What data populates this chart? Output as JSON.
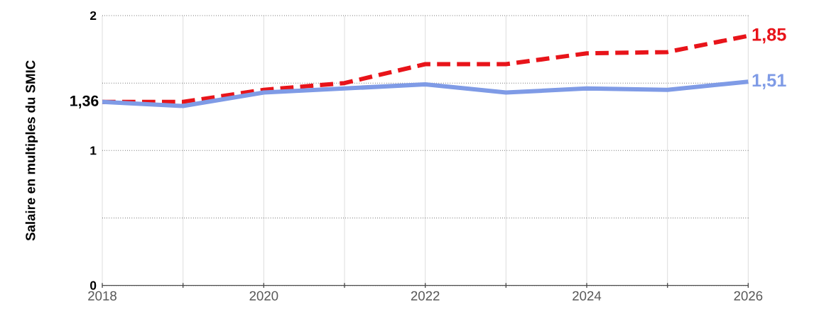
{
  "chart_data": {
    "type": "line",
    "ylabel": "Salaire en multiples du SMIC",
    "x": [
      2018,
      2019,
      2020,
      2021,
      2022,
      2023,
      2024,
      2025,
      2026
    ],
    "xlim": [
      2018,
      2026
    ],
    "ylim": [
      0,
      2
    ],
    "xticks": [
      2018,
      {
        "value": 2019,
        "label": null
      },
      2020,
      {
        "value": 2021,
        "label": null
      },
      2022,
      {
        "value": 2023,
        "label": null
      },
      2024,
      {
        "value": 2025,
        "label": null
      },
      2026
    ],
    "yticks": [
      0,
      {
        "value": 0.5,
        "label": null
      },
      1,
      {
        "value": 1.5,
        "label": null
      },
      2
    ],
    "grid": true,
    "marker": "none",
    "series": [
      {
        "color": "#e8141a",
        "line_style": "dashed",
        "values": [
          1.36,
          1.36,
          1.45,
          1.5,
          1.64,
          1.64,
          1.72,
          1.73,
          1.85
        ],
        "value_labels": [
          null,
          null,
          null,
          null,
          null,
          null,
          null,
          null,
          "1,85"
        ]
      },
      {
        "color": "#7f9be6",
        "line_style": "solid",
        "values": [
          1.36,
          1.33,
          1.43,
          1.46,
          1.49,
          1.43,
          1.46,
          1.45,
          1.51
        ],
        "value_labels": [
          null,
          null,
          null,
          null,
          null,
          null,
          null,
          null,
          "1,51"
        ]
      }
    ],
    "annotations": [
      {
        "text": "1,36",
        "x": 2018,
        "y": 1.36
      }
    ]
  }
}
